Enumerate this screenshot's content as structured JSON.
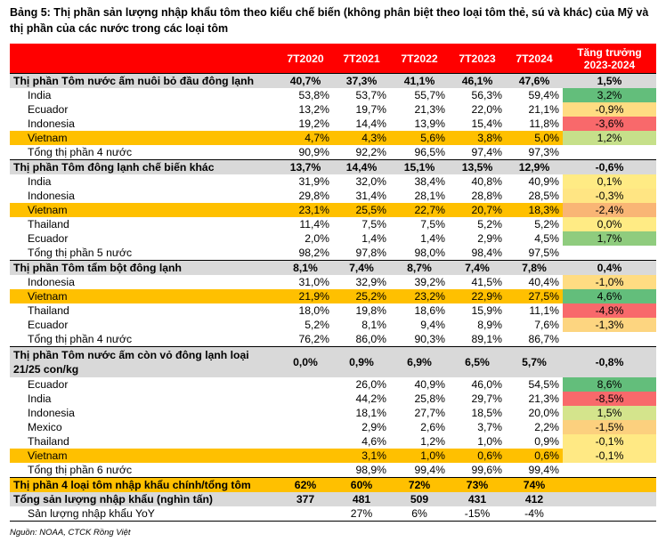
{
  "title": "Bảng 5: Thị phần sản lượng nhập khẩu tôm theo kiểu chế biến (không phân biệt theo loại tôm thẻ, sú và khác) của Mỹ và thị phần của các nước trong các loại tôm",
  "header": {
    "col0": "",
    "years": [
      "7T2020",
      "7T2021",
      "7T2022",
      "7T2023",
      "7T2024"
    ],
    "growth_line1": "Tăng trưởng",
    "growth_line2": "2023-2024"
  },
  "colors": {
    "green": "#63be7b",
    "light_green": "#c6e08a",
    "yellow": "#ffeb84",
    "orange_red": "#f8a06e",
    "red": "#f8696b",
    "vietnam": "#ffc000",
    "section": "#d9d9d9",
    "header": "#ff0000"
  },
  "rows": [
    {
      "type": "section",
      "label": "Thị phần Tôm nước ấm nuôi bỏ đầu đông lạnh",
      "v": [
        "40,7%",
        "37,3%",
        "41,1%",
        "46,1%",
        "47,6%"
      ],
      "g": "1,5%",
      "gc": ""
    },
    {
      "type": "item",
      "label": "India",
      "v": [
        "53,8%",
        "53,7%",
        "55,7%",
        "56,3%",
        "59,4%"
      ],
      "g": "3,2%",
      "gc": "#63be7b"
    },
    {
      "type": "item",
      "label": "Ecuador",
      "v": [
        "13,2%",
        "19,7%",
        "21,3%",
        "22,0%",
        "21,1%"
      ],
      "g": "-0,9%",
      "gc": "#ffdc82"
    },
    {
      "type": "item",
      "label": "Indonesia",
      "v": [
        "19,2%",
        "14,4%",
        "13,9%",
        "15,4%",
        "11,8%"
      ],
      "g": "-3,6%",
      "gc": "#f8696b"
    },
    {
      "type": "vn",
      "label": "Vietnam",
      "v": [
        "4,7%",
        "4,3%",
        "5,6%",
        "3,8%",
        "5,0%"
      ],
      "g": "1,2%",
      "gc": "#c6e08a"
    },
    {
      "type": "total",
      "label": "Tổng thị phần 4 nước",
      "v": [
        "90,9%",
        "92,2%",
        "96,5%",
        "97,4%",
        "97,3%"
      ],
      "g": "",
      "gc": ""
    },
    {
      "type": "section",
      "label": "Thị phần Tôm đông lạnh chế biến khác",
      "v": [
        "13,7%",
        "14,4%",
        "15,1%",
        "13,5%",
        "12,9%"
      ],
      "g": "-0,6%",
      "gc": ""
    },
    {
      "type": "item",
      "label": "India",
      "v": [
        "31,9%",
        "32,0%",
        "38,4%",
        "40,8%",
        "40,9%"
      ],
      "g": "0,1%",
      "gc": "#ffeb84"
    },
    {
      "type": "item",
      "label": "Indonesia",
      "v": [
        "29,8%",
        "31,4%",
        "28,1%",
        "28,8%",
        "28,5%"
      ],
      "g": "-0,3%",
      "gc": "#ffe583"
    },
    {
      "type": "vn",
      "label": "Vietnam",
      "v": [
        "23,1%",
        "25,5%",
        "22,7%",
        "20,7%",
        "18,3%"
      ],
      "g": "-2,4%",
      "gc": "#f9b575"
    },
    {
      "type": "item",
      "label": "Thailand",
      "v": [
        "11,4%",
        "7,5%",
        "7,5%",
        "5,2%",
        "5,2%"
      ],
      "g": "0,0%",
      "gc": "#ffeb84"
    },
    {
      "type": "item",
      "label": "Ecuador",
      "v": [
        "2,0%",
        "1,4%",
        "1,4%",
        "2,9%",
        "4,5%"
      ],
      "g": "1,7%",
      "gc": "#8fcc7e"
    },
    {
      "type": "total",
      "label": "Tổng thị phần 5 nước",
      "v": [
        "98,2%",
        "97,8%",
        "98,0%",
        "98,4%",
        "97,5%"
      ],
      "g": "",
      "gc": ""
    },
    {
      "type": "section",
      "label": "Thị phần Tôm tẩm bột đông lạnh",
      "v": [
        "8,1%",
        "7,4%",
        "8,7%",
        "7,4%",
        "7,8%"
      ],
      "g": "0,4%",
      "gc": ""
    },
    {
      "type": "item",
      "label": "Indonesia",
      "v": [
        "31,0%",
        "32,9%",
        "39,2%",
        "41,5%",
        "40,4%"
      ],
      "g": "-1,0%",
      "gc": "#ffdc82"
    },
    {
      "type": "vn",
      "label": "Vietnam",
      "v": [
        "21,9%",
        "25,2%",
        "23,2%",
        "22,9%",
        "27,5%"
      ],
      "g": "4,6%",
      "gc": "#63be7b"
    },
    {
      "type": "item",
      "label": "Thailand",
      "v": [
        "18,0%",
        "19,8%",
        "18,6%",
        "15,9%",
        "11,1%"
      ],
      "g": "-4,8%",
      "gc": "#f8696b"
    },
    {
      "type": "item",
      "label": "Ecuador",
      "v": [
        "5,2%",
        "8,1%",
        "9,4%",
        "8,9%",
        "7,6%"
      ],
      "g": "-1,3%",
      "gc": "#fdd580"
    },
    {
      "type": "total",
      "label": "Tổng thị phần 4 nước",
      "v": [
        "76,2%",
        "86,0%",
        "90,3%",
        "89,1%",
        "86,7%"
      ],
      "g": "",
      "gc": ""
    },
    {
      "type": "section_tall",
      "label": "Thị phần Tôm nước ấm còn vỏ đông lạnh loại 21/25 con/kg",
      "v": [
        "0,0%",
        "0,9%",
        "6,9%",
        "6,5%",
        "5,7%"
      ],
      "g": "-0,8%",
      "gc": ""
    },
    {
      "type": "item",
      "label": "Ecuador",
      "v": [
        "",
        "26,0%",
        "40,9%",
        "46,0%",
        "54,5%"
      ],
      "g": "8,6%",
      "gc": "#63be7b"
    },
    {
      "type": "item",
      "label": "India",
      "v": [
        "",
        "44,2%",
        "25,8%",
        "29,7%",
        "21,3%"
      ],
      "g": "-8,5%",
      "gc": "#f8696b"
    },
    {
      "type": "item",
      "label": "Indonesia",
      "v": [
        "",
        "18,1%",
        "27,7%",
        "18,5%",
        "20,0%"
      ],
      "g": "1,5%",
      "gc": "#d4e48c"
    },
    {
      "type": "item",
      "label": "Mexico",
      "v": [
        "",
        "2,9%",
        "2,6%",
        "3,7%",
        "2,2%"
      ],
      "g": "-1,5%",
      "gc": "#fcd07e"
    },
    {
      "type": "item",
      "label": "Thailand",
      "v": [
        "",
        "4,6%",
        "1,2%",
        "1,0%",
        "0,9%"
      ],
      "g": "-0,1%",
      "gc": "#ffe984"
    },
    {
      "type": "vn",
      "label": "Vietnam",
      "v": [
        "",
        "3,1%",
        "1,0%",
        "0,6%",
        "0,6%"
      ],
      "g": "-0,1%",
      "gc": "#ffe984"
    },
    {
      "type": "total",
      "label": "Tổng thị phần 6 nước",
      "v": [
        "",
        "98,9%",
        "99,4%",
        "99,6%",
        "99,4%"
      ],
      "g": "",
      "gc": ""
    }
  ],
  "bottom_rows": [
    {
      "type": "orange",
      "label": "Thị phần 4 loại tôm nhập khẩu chính/tổng tôm",
      "v": [
        "62%",
        "60%",
        "72%",
        "73%",
        "74%"
      ],
      "g": ""
    },
    {
      "type": "grey",
      "label": "Tổng sản lượng nhập khẩu (nghìn tấn)",
      "v": [
        "377",
        "481",
        "509",
        "431",
        "412"
      ],
      "g": ""
    },
    {
      "type": "yoy",
      "label": "Sản lượng nhập khẩu YoY",
      "v": [
        "",
        "27%",
        "6%",
        "-15%",
        "-4%"
      ],
      "g": ""
    }
  ],
  "source": "Nguồn: NOAA, CTCK Rồng Việt"
}
